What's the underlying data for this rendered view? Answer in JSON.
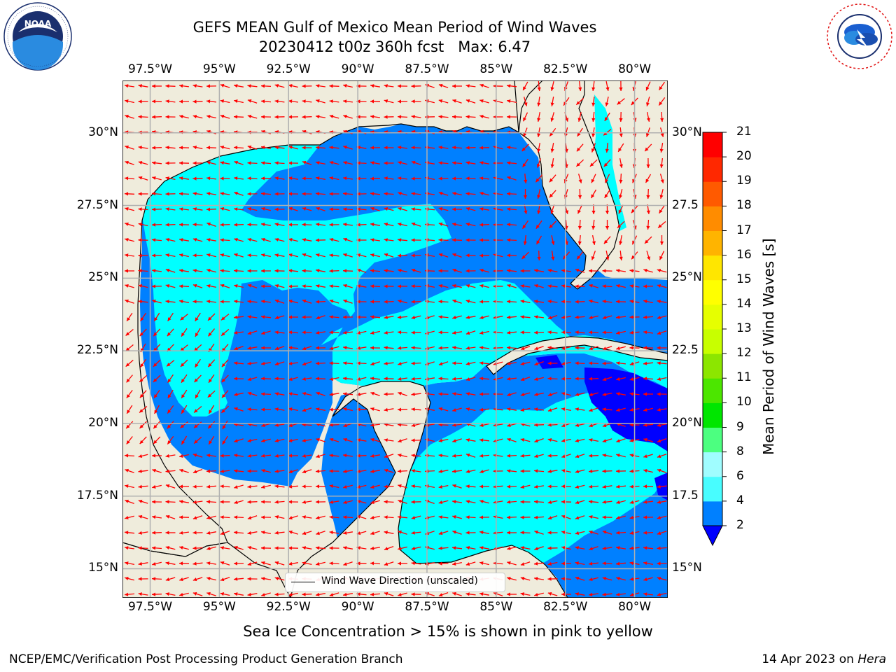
{
  "title": {
    "line1": "GEFS MEAN Gulf of Mexico Mean Period of Wind Waves",
    "line2": "20230412 t00z 360h fcst   Max: 6.47"
  },
  "logos": {
    "noara": {
      "text": "NOAA",
      "ring_text": "NATIONAL OCEANIC AND ATMOSPHERIC ADMINISTRATION · U.S. DEPARTMENT OF COMMERCE"
    },
    "nws": {
      "ring_text": "NATIONAL WEATHER SERVICE"
    }
  },
  "map": {
    "lon_range": [
      -98.5,
      -78.8
    ],
    "lat_range": [
      14.0,
      31.8
    ],
    "lon_ticks": [
      "97.5°W",
      "95°W",
      "92.5°W",
      "90°W",
      "87.5°W",
      "85°W",
      "82.5°W",
      "80°W"
    ],
    "lon_tick_values": [
      -97.5,
      -95,
      -92.5,
      -90,
      -87.5,
      -85,
      -82.5,
      -80
    ],
    "lat_ticks_left": [
      "30°N",
      "27.5°N",
      "25°N",
      "22.5°N",
      "20°N",
      "17.5°N",
      "15°N"
    ],
    "lat_ticks_right": [
      "30°N",
      "27.5",
      "25°N",
      "22.5",
      "20°N",
      "17.5",
      "15°N"
    ],
    "lat_tick_values": [
      30,
      27.5,
      25,
      22.5,
      20,
      17.5,
      15
    ],
    "land_color": "#efecdc",
    "grid_color": "#b0b0b0",
    "arrow_color": "#ff0000"
  },
  "legend": {
    "label": "Wind Wave Direction (unscaled)"
  },
  "colorbar": {
    "label": "Mean Period of Wind Waves [s]",
    "ticks": [
      "2",
      "4",
      "6",
      "8",
      "9",
      "10",
      "11",
      "12",
      "13",
      "14",
      "15",
      "16",
      "17",
      "18",
      "19",
      "20",
      "21"
    ],
    "levels": [
      2,
      4,
      6,
      8,
      9,
      10,
      11,
      12,
      13,
      14,
      15,
      16,
      17,
      18,
      19,
      20,
      21
    ],
    "colors": [
      "#0080ff",
      "#00ffff",
      "#48fdff",
      "#a0fdff",
      "#4cff80",
      "#00e600",
      "#4ce600",
      "#8ce600",
      "#c8ff00",
      "#e6ff00",
      "#ffff00",
      "#ffe600",
      "#ffb400",
      "#ff8c00",
      "#ff5a00",
      "#ff2800",
      "#ff0000"
    ],
    "under_color": "#0000ff"
  },
  "note": "Sea Ice Concentration > 15% is shown in pink to yellow",
  "footer": {
    "left": "NCEP/EMC/Verification Post Processing Product Generation Branch",
    "right_date": "14 Apr 2023 on",
    "right_host": "Hera"
  }
}
